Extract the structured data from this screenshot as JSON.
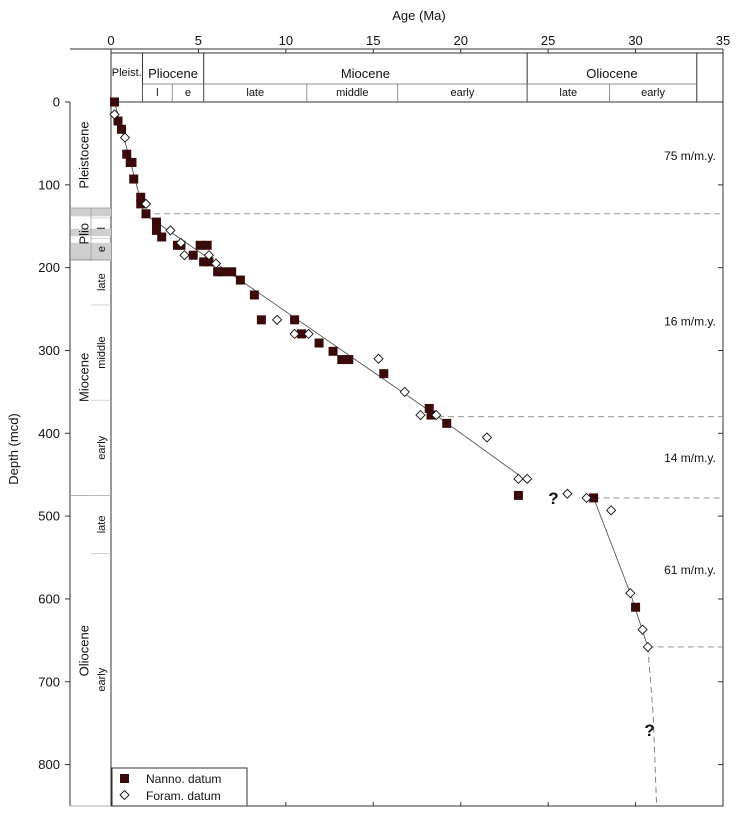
{
  "chart_data": {
    "type": "scatter",
    "xlabel": "Age (Ma)",
    "ylabel": "Depth (mcd)",
    "xlim": [
      0,
      35
    ],
    "ylim": [
      850,
      0
    ],
    "xticks": [
      0,
      5,
      10,
      15,
      20,
      25,
      30,
      35
    ],
    "yticks": [
      0,
      100,
      200,
      300,
      400,
      500,
      600,
      700,
      800
    ],
    "series": [
      {
        "name": "Nanno. datum",
        "marker": "filled-square",
        "color": "#3a0a0a",
        "points": [
          [
            0.2,
            0
          ],
          [
            0.4,
            23
          ],
          [
            0.6,
            33
          ],
          [
            0.9,
            63
          ],
          [
            1.1,
            73
          ],
          [
            1.2,
            73
          ],
          [
            1.3,
            93
          ],
          [
            1.7,
            115
          ],
          [
            1.7,
            123
          ],
          [
            2.0,
            135
          ],
          [
            2.6,
            145
          ],
          [
            2.6,
            155
          ],
          [
            2.9,
            163
          ],
          [
            3.8,
            173
          ],
          [
            4.0,
            173
          ],
          [
            4.7,
            185
          ],
          [
            5.1,
            173
          ],
          [
            5.5,
            173
          ],
          [
            5.3,
            193
          ],
          [
            5.6,
            193
          ],
          [
            6.1,
            205
          ],
          [
            6.4,
            205
          ],
          [
            6.9,
            205
          ],
          [
            7.4,
            215
          ],
          [
            8.2,
            233
          ],
          [
            8.6,
            263
          ],
          [
            10.5,
            263
          ],
          [
            10.9,
            280
          ],
          [
            11.9,
            291
          ],
          [
            12.7,
            301
          ],
          [
            13.2,
            311
          ],
          [
            13.6,
            311
          ],
          [
            15.6,
            328
          ],
          [
            18.2,
            370
          ],
          [
            18.3,
            378
          ],
          [
            19.2,
            388
          ],
          [
            23.3,
            475
          ],
          [
            27.6,
            478
          ],
          [
            30.0,
            610
          ]
        ]
      },
      {
        "name": "Foram. datum",
        "marker": "open-diamond",
        "color": "#111111",
        "points": [
          [
            0.2,
            15
          ],
          [
            0.8,
            43
          ],
          [
            2.0,
            123
          ],
          [
            3.4,
            155
          ],
          [
            4.0,
            170
          ],
          [
            4.2,
            185
          ],
          [
            5.6,
            185
          ],
          [
            6.0,
            195
          ],
          [
            9.5,
            263
          ],
          [
            10.5,
            280
          ],
          [
            11.3,
            280
          ],
          [
            15.3,
            310
          ],
          [
            16.8,
            350
          ],
          [
            17.7,
            378
          ],
          [
            18.6,
            378
          ],
          [
            21.5,
            405
          ],
          [
            23.3,
            455
          ],
          [
            23.8,
            455
          ],
          [
            26.1,
            473
          ],
          [
            27.2,
            478
          ],
          [
            28.6,
            493
          ],
          [
            29.7,
            593
          ],
          [
            30.4,
            637
          ],
          [
            30.7,
            658
          ]
        ]
      }
    ],
    "trend_lines": [
      {
        "style": "solid",
        "points": [
          [
            0.2,
            0
          ],
          [
            1.9,
            135
          ],
          [
            18.7,
            380
          ],
          [
            23.3,
            450
          ]
        ]
      },
      {
        "style": "dashed",
        "points": [
          [
            18.7,
            380
          ],
          [
            23.3,
            450
          ]
        ]
      },
      {
        "style": "solid",
        "points": [
          [
            27.6,
            478
          ],
          [
            29.7,
            593
          ],
          [
            30.7,
            658
          ]
        ]
      },
      {
        "style": "dashed",
        "points": [
          [
            30.7,
            658
          ],
          [
            31.0,
            738
          ],
          [
            31.2,
            850
          ]
        ]
      }
    ],
    "boundary_lines": [
      {
        "depth": 135,
        "from_age": 1.9
      },
      {
        "depth": 380,
        "from_age": 18.7
      },
      {
        "depth": 478,
        "from_age": 27.6
      },
      {
        "depth": 658,
        "from_age": 30.7
      }
    ],
    "rate_labels": [
      {
        "text": "75 m/m.y.",
        "depth": 65
      },
      {
        "text": "16 m/m.y.",
        "depth": 265
      },
      {
        "text": "14 m/m.y.",
        "depth": 430
      },
      {
        "text": "61 m/m.y.",
        "depth": 565
      }
    ],
    "question_marks": [
      {
        "text": "?",
        "age": 25.3,
        "depth": 478
      },
      {
        "text": "?",
        "age": 30.8,
        "depth": 758
      }
    ],
    "timescale": {
      "epochs": [
        {
          "label": "Pleist.",
          "start": 0,
          "end": 1.8
        },
        {
          "label": "Pliocene",
          "start": 1.8,
          "end": 5.3
        },
        {
          "label": "Miocene",
          "start": 5.3,
          "end": 23.8
        },
        {
          "label": "Oliocene",
          "start": 23.8,
          "end": 33.5
        }
      ],
      "subdivisions": [
        {
          "label": "l",
          "start": 1.8,
          "end": 3.5
        },
        {
          "label": "e",
          "start": 3.5,
          "end": 5.3
        },
        {
          "label": "late",
          "start": 5.3,
          "end": 11.2
        },
        {
          "label": "middle",
          "start": 11.2,
          "end": 16.4
        },
        {
          "label": "early",
          "start": 16.4,
          "end": 23.8
        },
        {
          "label": "late",
          "start": 23.8,
          "end": 28.5
        },
        {
          "label": "early",
          "start": 28.5,
          "end": 33.5
        }
      ]
    },
    "depth_stratigraphy": {
      "epochs": [
        {
          "label": "Pleistocene",
          "top": 0,
          "bottom": 128
        },
        {
          "label": "Plio",
          "top": 128,
          "bottom": 190
        },
        {
          "label": "Miocene",
          "top": 190,
          "bottom": 475
        },
        {
          "label": "Oliocene",
          "top": 475,
          "bottom": 850
        }
      ],
      "subdivisions": [
        {
          "label": "l",
          "top": 140,
          "bottom": 165
        },
        {
          "label": "e",
          "top": 165,
          "bottom": 190
        },
        {
          "label": "late",
          "top": 190,
          "bottom": 245
        },
        {
          "label": "middle",
          "top": 245,
          "bottom": 360
        },
        {
          "label": "early",
          "top": 360,
          "bottom": 475
        },
        {
          "label": "late",
          "top": 475,
          "bottom": 545
        },
        {
          "label": "early",
          "top": 545,
          "bottom": 850
        }
      ],
      "uncertainty_bands": [
        {
          "top": 128,
          "bottom": 138
        },
        {
          "top": 153,
          "bottom": 162
        },
        {
          "top": 170,
          "bottom": 192
        }
      ]
    },
    "legend_position": "bottom-left"
  }
}
